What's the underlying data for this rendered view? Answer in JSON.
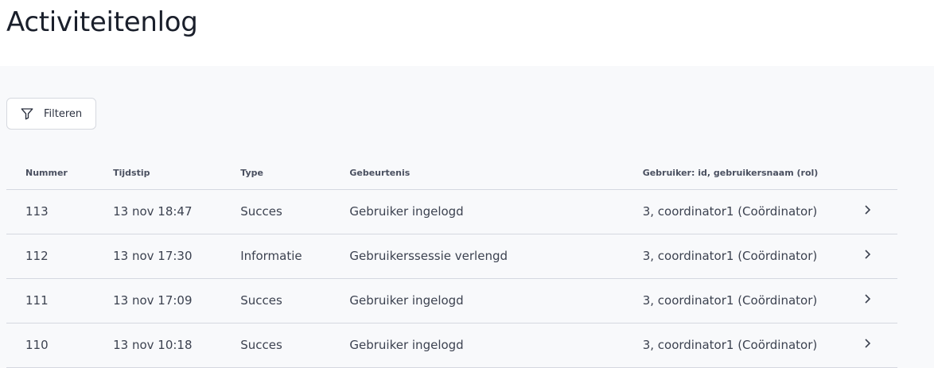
{
  "page": {
    "title": "Activiteitenlog"
  },
  "toolbar": {
    "filter_label": "Filteren",
    "filter_icon": "filter-icon"
  },
  "table": {
    "columns": [
      "Nummer",
      "Tijdstip",
      "Type",
      "Gebeurtenis",
      "Gebruiker: id, gebruikersnaam (rol)"
    ],
    "rows": [
      [
        "113",
        "13 nov 18:47",
        "Succes",
        "Gebruiker ingelogd",
        "3, coordinator1 (Coördinator)"
      ],
      [
        "112",
        "13 nov 17:30",
        "Informatie",
        "Gebruikerssessie verlengd",
        "3, coordinator1 (Coördinator)"
      ],
      [
        "111",
        "13 nov 17:09",
        "Succes",
        "Gebruiker ingelogd",
        "3, coordinator1 (Coördinator)"
      ],
      [
        "110",
        "13 nov 10:18",
        "Succes",
        "Gebruiker ingelogd",
        "3, coordinator1 (Coördinator)"
      ]
    ]
  }
}
